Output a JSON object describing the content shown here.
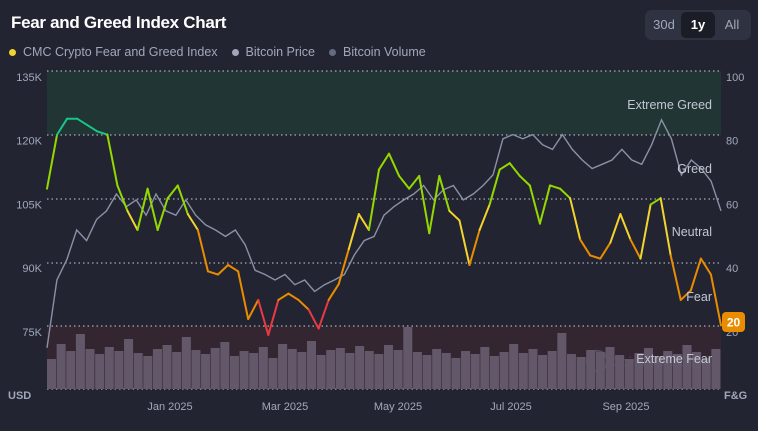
{
  "header": {
    "title": "Fear and Greed Index Chart",
    "ranges": [
      "30d",
      "1y",
      "All"
    ],
    "active_range": "1y"
  },
  "legend": [
    {
      "label": "CMC Crypto Fear and Greed Index",
      "color": "#f3d42f"
    },
    {
      "label": "Bitcoin Price",
      "color": "#a1a7bb"
    },
    {
      "label": "Bitcoin Volume",
      "color": "#646b80"
    }
  ],
  "watermark": "CoinMarketCap",
  "chart_data": {
    "type": "line",
    "title": "Fear and Greed Index Chart",
    "left_axis": {
      "label": "USD",
      "ticks": [
        "135K",
        "120K",
        "105K",
        "90K",
        "75K"
      ],
      "range": [
        60000,
        135000
      ]
    },
    "right_axis": {
      "label": "F&G",
      "ticks": [
        "100",
        "80",
        "60",
        "40",
        "20"
      ],
      "range": [
        0,
        100
      ]
    },
    "x_ticks": [
      "Jan 2025",
      "Mar 2025",
      "May 2025",
      "Jul 2025",
      "Sep 2025"
    ],
    "zones": [
      {
        "label": "Extreme Greed",
        "from": 80,
        "to": 100,
        "color": "#223535"
      },
      {
        "label": "Greed",
        "from": 60,
        "to": 80
      },
      {
        "label": "Neutral",
        "from": 40,
        "to": 60
      },
      {
        "label": "Fear",
        "from": 20,
        "to": 40
      },
      {
        "label": "Extreme Fear",
        "from": 0,
        "to": 20,
        "color": "#342631"
      }
    ],
    "current_value": "20",
    "series": [
      {
        "name": "CMC Crypto Fear and Greed Index",
        "values": [
          63,
          80,
          85,
          85,
          83,
          81,
          80,
          64,
          56,
          50,
          63,
          50,
          60,
          64,
          55,
          50,
          37,
          36,
          39,
          37,
          22,
          28,
          17,
          28,
          30,
          28,
          25,
          19,
          28,
          33,
          44,
          55,
          50,
          69,
          74,
          67,
          63,
          67,
          49,
          67,
          56,
          53,
          39,
          50,
          58,
          69,
          71,
          67,
          64,
          52,
          64,
          63,
          60,
          47,
          42,
          41,
          46,
          55,
          47,
          41,
          58,
          60,
          42,
          28,
          31,
          41,
          36,
          20
        ]
      },
      {
        "name": "Bitcoin Price",
        "values": [
          69700,
          85700,
          90500,
          97500,
          95000,
          100000,
          102000,
          106000,
          103000,
          104600,
          101000,
          106000,
          102000,
          101000,
          104600,
          101000,
          98700,
          97500,
          96000,
          97500,
          94000,
          88000,
          87000,
          85700,
          87000,
          84600,
          85700,
          83000,
          84600,
          85700,
          87000,
          91600,
          95000,
          96000,
          101000,
          103000,
          104600,
          106000,
          108000,
          104600,
          107000,
          108000,
          104600,
          106000,
          108000,
          110500,
          119000,
          120000,
          119000,
          120000,
          117600,
          116500,
          120000,
          116500,
          114000,
          112000,
          113000,
          114000,
          116500,
          114000,
          113000,
          117600,
          123500,
          119000,
          110500,
          114000,
          112000,
          109000,
          102000
        ]
      },
      {
        "name": "Bitcoin Volume",
        "values": [
          30,
          45,
          38,
          55,
          40,
          35,
          42,
          38,
          50,
          36,
          33,
          40,
          44,
          37,
          52,
          39,
          35,
          41,
          47,
          33,
          38,
          36,
          42,
          31,
          45,
          40,
          37,
          48,
          34,
          39,
          41,
          36,
          43,
          38,
          35,
          44,
          39,
          62,
          37,
          34,
          40,
          36,
          31,
          38,
          35,
          42,
          33,
          37,
          45,
          36,
          40,
          34,
          38,
          56,
          35,
          32,
          39,
          37,
          42,
          34,
          30,
          36,
          41,
          33,
          38,
          35,
          44,
          37,
          31,
          40
        ]
      }
    ]
  }
}
